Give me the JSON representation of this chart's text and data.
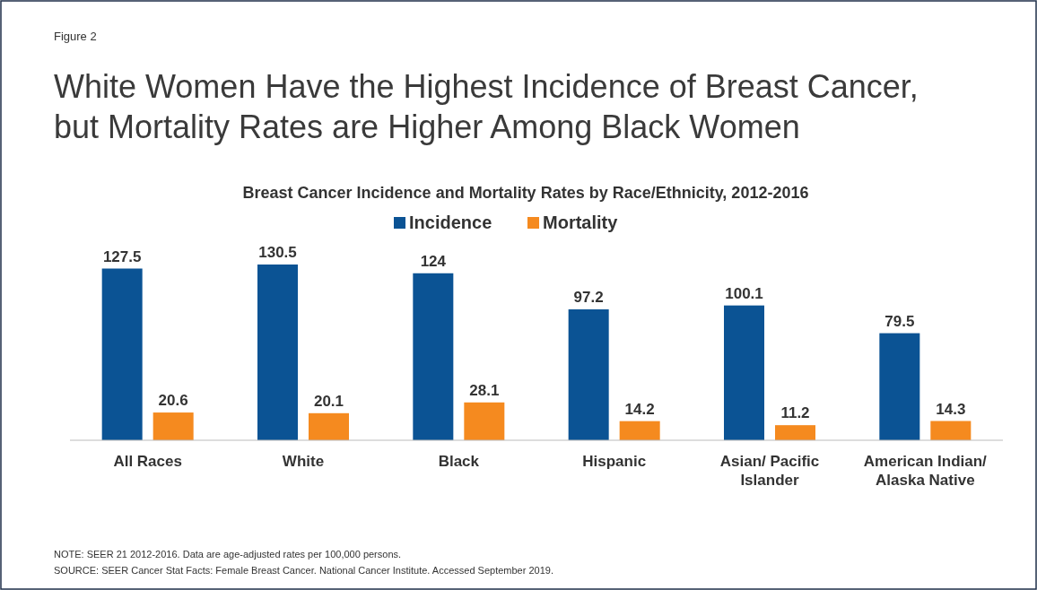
{
  "chart_data": {
    "type": "bar",
    "title": "White Women Have the Highest Incidence of Breast Cancer, but Mortality Rates are Higher Among Black Women",
    "subtitle": "Breast Cancer Incidence and Mortality Rates by Race/Ethnicity, 2012-2016",
    "categories": [
      "All Races",
      "White",
      "Black",
      "Hispanic",
      "Asian/ Pacific Islander",
      "American Indian/ Alaska Native"
    ],
    "series": [
      {
        "name": "Incidence",
        "color": "#0b5394",
        "values": [
          127.5,
          130.5,
          124,
          97.2,
          100.1,
          79.5
        ]
      },
      {
        "name": "Mortality",
        "color": "#f58a1f",
        "values": [
          20.6,
          20.1,
          28.1,
          14.2,
          11.2,
          14.3
        ]
      }
    ],
    "data_labels": true,
    "legend": "top",
    "annotations": [
      "Figure 2",
      "NOTE: SEER 21 2012-2016. Data are age-adjusted rates per 100,000 persons.",
      "SOURCE: SEER Cancer Stat Facts: Female Breast Cancer. National Cancer Institute. Accessed September 2019."
    ]
  }
}
